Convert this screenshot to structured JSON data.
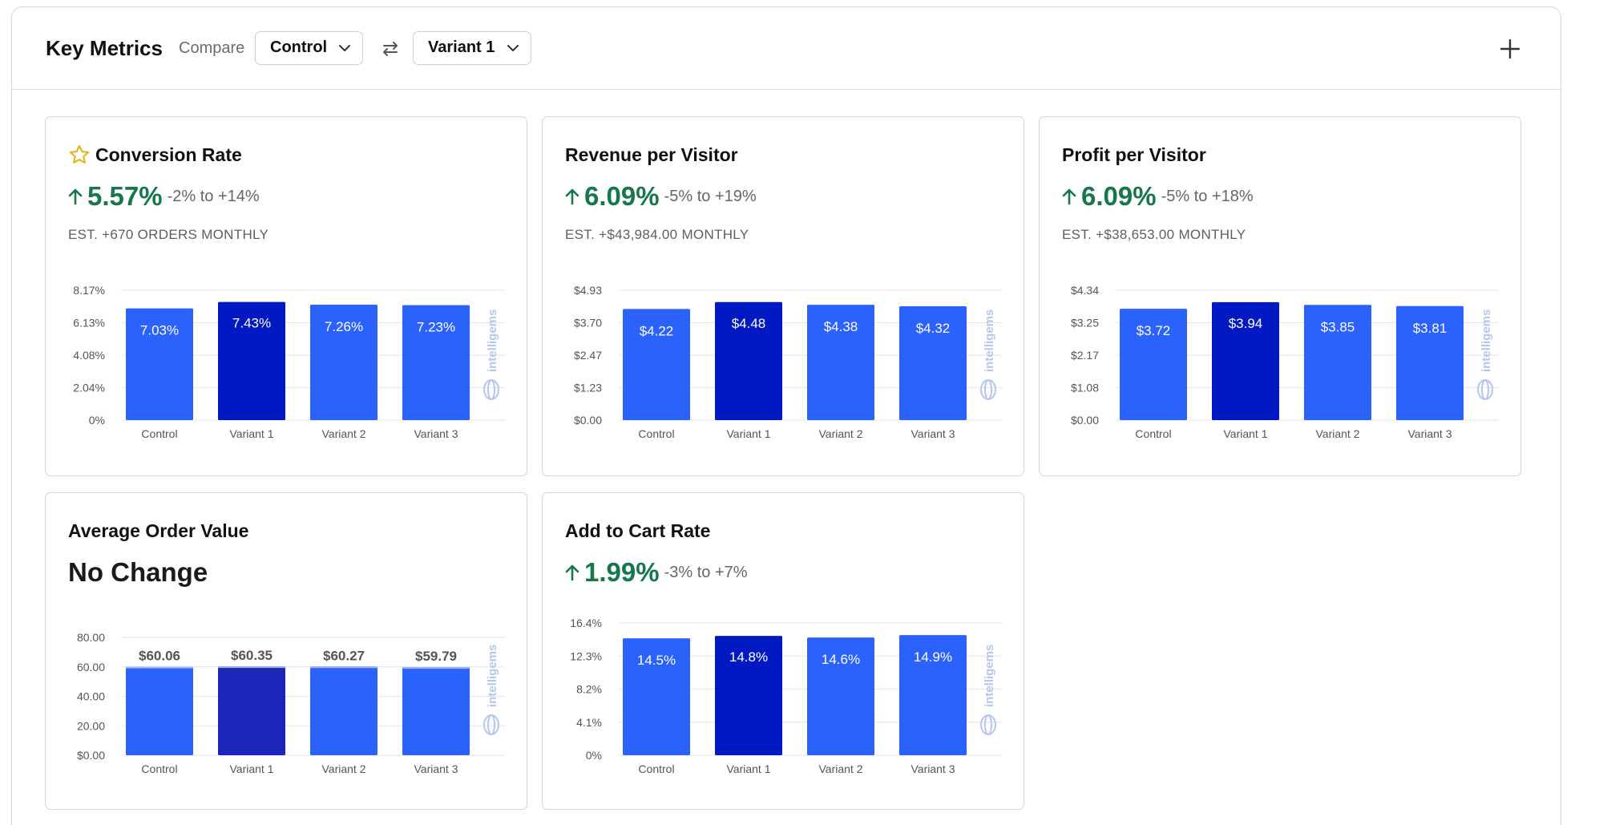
{
  "header": {
    "title": "Key Metrics",
    "compare_label": "Compare",
    "select_a": "Control",
    "select_b": "Variant 1"
  },
  "icons": {
    "swap": "swap-arrows-icon",
    "add": "plus-icon",
    "favorite": "star-icon",
    "lift": "arrow-up-icon",
    "watermark": "intelligems-logo"
  },
  "colors": {
    "bar": "#2b62fb",
    "bar_selected": "#0019c3",
    "bar_selected_aov": "#1c25b8",
    "positive": "#16784a",
    "star": "#e3b51c",
    "watermark": "#b5c6f2"
  },
  "watermark_text": "intelligems",
  "cards": {
    "conversion": {
      "title": "Conversion Rate",
      "lift": "5.57%",
      "range": "-2% to +14%",
      "est": "EST. +670 ORDERS MONTHLY"
    },
    "revenue": {
      "title": "Revenue per Visitor",
      "lift": "6.09%",
      "range": "-5% to +19%",
      "est": "EST. +$43,984.00 MONTHLY"
    },
    "profit": {
      "title": "Profit per Visitor",
      "lift": "6.09%",
      "range": "-5% to +18%",
      "est": "EST. +$38,653.00 MONTHLY"
    },
    "aov": {
      "title": "Average Order Value",
      "status": "No Change"
    },
    "atc": {
      "title": "Add to Cart Rate",
      "lift": "1.99%",
      "range": "-3% to +7%"
    }
  },
  "chart_data": [
    {
      "id": "conversion",
      "type": "bar",
      "categories": [
        "Control",
        "Variant 1",
        "Variant 2",
        "Variant 3"
      ],
      "values": [
        7.03,
        7.43,
        7.26,
        7.23
      ],
      "value_labels": [
        "7.03%",
        "7.43%",
        "7.26%",
        "7.23%"
      ],
      "yticks": [
        "0%",
        "2.04%",
        "4.08%",
        "6.13%",
        "8.17%"
      ],
      "ylim": [
        0,
        8.17
      ],
      "selected_index": 1,
      "label_position": "inside"
    },
    {
      "id": "revenue",
      "type": "bar",
      "categories": [
        "Control",
        "Variant 1",
        "Variant 2",
        "Variant 3"
      ],
      "values": [
        4.22,
        4.48,
        4.38,
        4.32
      ],
      "value_labels": [
        "$4.22",
        "$4.48",
        "$4.38",
        "$4.32"
      ],
      "yticks": [
        "$0.00",
        "$1.23",
        "$2.47",
        "$3.70",
        "$4.93"
      ],
      "ylim": [
        0,
        4.93
      ],
      "selected_index": 1,
      "label_position": "inside"
    },
    {
      "id": "profit",
      "type": "bar",
      "categories": [
        "Control",
        "Variant 1",
        "Variant 2",
        "Variant 3"
      ],
      "values": [
        3.72,
        3.94,
        3.85,
        3.81
      ],
      "value_labels": [
        "$3.72",
        "$3.94",
        "$3.85",
        "$3.81"
      ],
      "yticks": [
        "$0.00",
        "$1.08",
        "$2.17",
        "$3.25",
        "$4.34"
      ],
      "ylim": [
        0,
        4.34
      ],
      "selected_index": 1,
      "label_position": "inside"
    },
    {
      "id": "aov",
      "type": "bar",
      "categories": [
        "Control",
        "Variant 1",
        "Variant 2",
        "Variant 3"
      ],
      "values": [
        60.06,
        60.35,
        60.27,
        59.79
      ],
      "value_labels": [
        "$60.06",
        "$60.35",
        "$60.27",
        "$59.79"
      ],
      "yticks": [
        "$0.00",
        "20.00",
        "40.00",
        "60.00",
        "80.00"
      ],
      "ylim": [
        0,
        80
      ],
      "selected_index": 1,
      "label_position": "above"
    },
    {
      "id": "atc",
      "type": "bar",
      "categories": [
        "Control",
        "Variant 1",
        "Variant 2",
        "Variant 3"
      ],
      "values": [
        14.5,
        14.8,
        14.6,
        14.9
      ],
      "value_labels": [
        "14.5%",
        "14.8%",
        "14.6%",
        "14.9%"
      ],
      "yticks": [
        "0%",
        "4.1%",
        "8.2%",
        "12.3%",
        "16.4%"
      ],
      "ylim": [
        0,
        16.4
      ],
      "selected_index": 1,
      "label_position": "inside"
    }
  ]
}
